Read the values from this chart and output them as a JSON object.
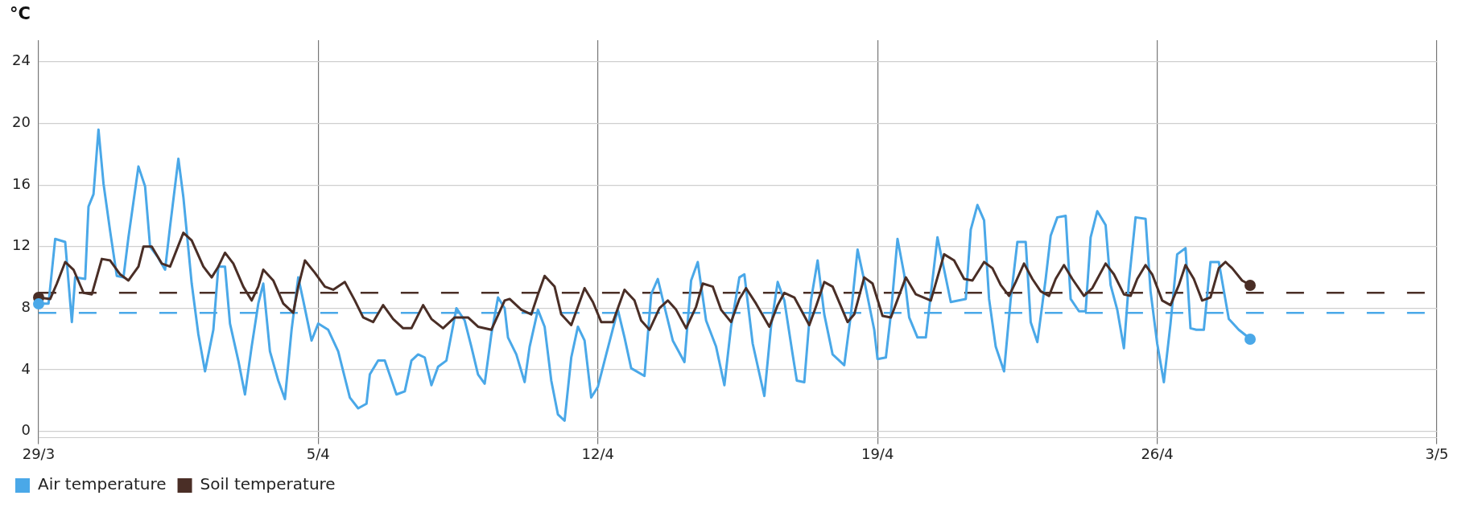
{
  "chart_data": {
    "type": "line",
    "ylabel": "°C",
    "xlim": [
      "--03-29",
      "--05-03"
    ],
    "xticks": [
      {
        "value": "--03-29",
        "label": "29/3"
      },
      {
        "value": "--04-05",
        "label": "5/4"
      },
      {
        "value": "--04-12",
        "label": "12/4"
      },
      {
        "value": "--04-19",
        "label": "19/4"
      },
      {
        "value": "--04-26",
        "label": "26/4"
      },
      {
        "value": "--05-03",
        "label": "3/5"
      }
    ],
    "ylim": [
      -0.4,
      25.4
    ],
    "yticks": [
      0,
      4,
      8,
      12,
      16,
      20,
      24
    ],
    "grid": true,
    "legend": "bottom left",
    "line_style": "solid",
    "ref_lines": [
      {
        "axis": "y",
        "value": 9.0,
        "color": "#4a2e26",
        "line_style": "dashed"
      },
      {
        "axis": "y",
        "value": 7.7,
        "color": "#4aa8e8",
        "line_style": "dashed"
      }
    ],
    "series": [
      {
        "name": "Air temperature",
        "color": "#4aa8e8",
        "x": [
          "--03-29T00:00",
          "--03-29T06:00",
          "--03-29T10:00",
          "--03-29T16:00",
          "--03-29T20:00",
          "--03-29T22:00",
          "--03-30T04:00",
          "--03-30T06:00",
          "--03-30T09:00",
          "--03-30T12:00",
          "--03-30T15:00",
          "--03-30T19:00",
          "--03-30T23:00",
          "--03-31T03:00",
          "--03-31T06:00",
          "--03-31T12:00",
          "--03-31T16:00",
          "--03-31T19:00",
          "--03-31T23:45",
          "--04-01T04:00",
          "--04-01T07:00",
          "--04-01T12:00",
          "--04-01T15:00",
          "--04-01T20:00",
          "--04-02T00:00",
          "--04-02T04:00",
          "--04-02T09:00",
          "--04-02T12:00",
          "--04-02T16:00",
          "--04-02T19:00",
          "--04-03T00:00",
          "--04-03T04:00",
          "--04-03T08:00",
          "--04-03T12:00",
          "--04-03T15:00",
          "--04-03T19:00",
          "--04-04T00:00",
          "--04-04T04:00",
          "--04-04T08:00",
          "--04-04T12:00",
          "--04-04T15:00",
          "--04-04T20:00",
          "--04-05T00:00",
          "--04-05T06:00",
          "--04-05T12:00",
          "--04-05T19:00",
          "--04-06T00:00",
          "--04-06T05:00",
          "--04-06T07:00",
          "--04-06T12:00",
          "--04-06T16:00",
          "--04-06T23:00",
          "--04-07T04:00",
          "--04-07T08:00",
          "--04-07T12:00",
          "--04-07T16:00",
          "--04-07T20:00",
          "--04-08T00:00",
          "--04-08T05:00",
          "--04-08T11:00",
          "--04-08T16:00",
          "--04-08T20:00",
          "--04-09T00:00",
          "--04-09T04:00",
          "--04-09T08:00",
          "--04-09T12:00",
          "--04-09T16:00",
          "--04-09T18:00",
          "--04-09T23:00",
          "--04-10T04:00",
          "--04-10T07:00",
          "--04-10T12:00",
          "--04-10T16:00",
          "--04-10T20:00",
          "--04-11T00:00",
          "--04-11T04:00",
          "--04-11T08:00",
          "--04-11T12:00",
          "--04-11T16:00",
          "--04-11T20:00",
          "--04-12T00:00",
          "--04-12T05:00",
          "--04-12T12:00",
          "--04-12T16:00",
          "--04-12T20:00",
          "--04-13T04:00",
          "--04-13T08:00",
          "--04-13T12:00",
          "--04-13T16:00",
          "--04-13T21:00",
          "--04-14T04:00",
          "--04-14T08:00",
          "--04-14T12:00",
          "--04-14T17:00",
          "--04-14T23:00",
          "--04-15T04:00",
          "--04-15T08:00",
          "--04-15T13:00",
          "--04-15T16:00",
          "--04-15T21:00",
          "--04-16T04:00",
          "--04-16T08:00",
          "--04-16T12:00",
          "--04-16T16:00",
          "--04-16T21:00",
          "--04-16T23:30",
          "--04-17T04:00",
          "--04-17T08:00",
          "--04-17T12:00",
          "--04-17T16:00",
          "--04-17T21:00",
          "--04-18T04:00",
          "--04-18T08:00",
          "--04-18T12:00",
          "--04-18T16:00",
          "--04-18T22:00",
          "--04-19T00:00",
          "--04-19T05:00",
          "--04-19T08:00",
          "--04-19T12:00",
          "--04-19T16:00",
          "--04-19T19:00",
          "--04-20T00:00",
          "--04-20T05:00",
          "--04-20T08:00",
          "--04-20T12:00",
          "--04-20T16:00",
          "--04-20T20:00",
          "--04-21T05:00",
          "--04-21T08:00",
          "--04-21T12:00",
          "--04-21T16:00",
          "--04-21T19:00",
          "--04-21T23:00",
          "--04-22T04:00",
          "--04-22T08:00",
          "--04-22T12:00",
          "--04-22T17:00",
          "--04-22T20:00",
          "--04-23T00:00",
          "--04-23T05:00",
          "--04-23T08:00",
          "--04-23T12:00",
          "--04-23T17:00",
          "--04-23T20:00",
          "--04-24T01:00",
          "--04-24T05:00",
          "--04-24T08:00",
          "--04-24T12:00",
          "--04-24T17:00",
          "--04-24T20:00",
          "--04-25T00:00",
          "--04-25T04:00",
          "--04-25T07:00",
          "--04-25T11:00",
          "--04-25T17:00",
          "--04-25T20:00",
          "--04-26T00:00",
          "--04-26T04:00",
          "--04-26T08:00",
          "--04-26T12:00",
          "--04-26T17:00",
          "--04-26T20:00",
          "--04-26T23:30",
          "--04-27T04:00",
          "--04-27T08:00",
          "--04-27T13:00",
          "--04-27T19:00",
          "--04-28T01:00",
          "--04-28T08:00"
        ],
        "values": [
          8.3,
          8.3,
          12.5,
          12.3,
          7.1,
          10.0,
          9.9,
          14.6,
          15.4,
          19.6,
          16.1,
          13.0,
          10.1,
          10.0,
          12.6,
          17.2,
          15.9,
          12.0,
          11.3,
          10.5,
          13.3,
          17.7,
          15.2,
          9.6,
          6.3,
          3.9,
          6.6,
          10.7,
          10.7,
          7.0,
          4.6,
          2.4,
          5.5,
          8.3,
          9.6,
          5.2,
          3.3,
          2.1,
          6.6,
          10.0,
          8.5,
          5.9,
          7.0,
          6.6,
          5.2,
          2.2,
          1.5,
          1.8,
          3.7,
          4.6,
          4.6,
          2.4,
          2.6,
          4.6,
          5.0,
          4.8,
          3.0,
          4.2,
          4.6,
          8.0,
          7.2,
          5.5,
          3.7,
          3.1,
          6.3,
          8.7,
          8.0,
          6.1,
          5.0,
          3.2,
          5.5,
          7.9,
          6.8,
          3.3,
          1.1,
          0.7,
          4.8,
          6.8,
          5.9,
          2.2,
          2.9,
          5.0,
          7.9,
          6.1,
          4.1,
          3.6,
          8.9,
          9.9,
          8.1,
          5.9,
          4.5,
          9.8,
          11.0,
          7.2,
          5.5,
          3.0,
          6.8,
          10.0,
          10.2,
          5.7,
          2.3,
          6.8,
          9.7,
          8.5,
          5.0,
          3.3,
          3.2,
          8.5,
          11.1,
          7.6,
          5.0,
          4.3,
          7.6,
          11.8,
          9.8,
          6.6,
          4.7,
          4.8,
          7.6,
          12.5,
          10.2,
          7.4,
          6.1,
          6.1,
          8.9,
          12.6,
          10.5,
          8.4,
          8.6,
          13.1,
          14.7,
          13.7,
          8.6,
          5.5,
          3.9,
          8.6,
          12.3,
          12.3,
          7.1,
          5.8,
          9.9,
          12.7,
          13.9,
          14.0,
          8.6,
          7.8,
          7.8,
          12.6,
          14.3,
          13.4,
          9.5,
          7.9,
          5.4,
          9.7,
          13.9,
          13.8,
          9.1,
          5.7,
          3.2,
          7.0,
          11.5,
          11.9,
          6.7,
          6.6,
          6.6,
          11.0,
          11.0,
          7.3,
          6.6,
          6.0
        ]
      },
      {
        "name": "Soil temperature",
        "color": "#4a2e26",
        "x": [
          "--03-29T00:00",
          "--03-29T07:00",
          "--03-29T11:00",
          "--03-29T16:00",
          "--03-29T21:00",
          "--03-30T03:00",
          "--03-30T08:00",
          "--03-30T14:00",
          "--03-30T19:00",
          "--03-31T01:00",
          "--03-31T06:00",
          "--03-31T12:00",
          "--03-31T15:00",
          "--03-31T20:00",
          "--04-01T02:00",
          "--04-01T07:00",
          "--04-01T11:00",
          "--04-01T15:00",
          "--04-01T20:00",
          "--04-02T03:00",
          "--04-02T08:00",
          "--04-02T12:00",
          "--04-02T16:00",
          "--04-02T21:00",
          "--04-03T03:00",
          "--04-03T08:00",
          "--04-03T12:00",
          "--04-03T15:00",
          "--04-03T21:00",
          "--04-04T03:00",
          "--04-04T09:00",
          "--04-04T12:00",
          "--04-04T16:00",
          "--04-04T22:00",
          "--04-05T04:00",
          "--04-05T09:00",
          "--04-05T16:00",
          "--04-05T22:00",
          "--04-06T03:00",
          "--04-06T09:00",
          "--04-06T15:00",
          "--04-06T21:00",
          "--04-07T03:00",
          "--04-07T08:00",
          "--04-07T15:00",
          "--04-07T20:00",
          "--04-08T03:00",
          "--04-08T10:00",
          "--04-08T18:00",
          "--04-09T00:00",
          "--04-09T08:00",
          "--04-09T16:00",
          "--04-09T19:00",
          "--04-10T02:00",
          "--04-10T08:00",
          "--04-10T12:00",
          "--04-10T16:00",
          "--04-10T22:00",
          "--04-11T02:00",
          "--04-11T08:00",
          "--04-11T12:00",
          "--04-11T16:00",
          "--04-11T21:00",
          "--04-12T02:00",
          "--04-12T09:00",
          "--04-12T16:00",
          "--04-12T22:00",
          "--04-13T02:00",
          "--04-13T07:00",
          "--04-13T13:00",
          "--04-13T18:00",
          "--04-13T23:00",
          "--04-14T05:00",
          "--04-14T11:00",
          "--04-14T15:00",
          "--04-14T21:00",
          "--04-15T02:00",
          "--04-15T08:00",
          "--04-15T13:00",
          "--04-15T17:00",
          "--04-15T23:00",
          "--04-16T07:00",
          "--04-16T12:00",
          "--04-16T16:00",
          "--04-16T22:00",
          "--04-17T07:00",
          "--04-17T11:00",
          "--04-17T16:00",
          "--04-17T21:00",
          "--04-18T06:00",
          "--04-18T10:00",
          "--04-18T16:00",
          "--04-18T21:00",
          "--04-19T03:00",
          "--04-19T08:00",
          "--04-19T17:00",
          "--04-19T23:00",
          "--04-20T08:00",
          "--04-20T16:00",
          "--04-20T22:00",
          "--04-21T04:00",
          "--04-21T09:00",
          "--04-21T16:00",
          "--04-21T21:00",
          "--04-22T02:00",
          "--04-22T07:00",
          "--04-22T11:00",
          "--04-22T16:00",
          "--04-22T21:00",
          "--04-23T02:00",
          "--04-23T07:00",
          "--04-23T11:00",
          "--04-23T16:00",
          "--04-23T21:00",
          "--04-24T04:00",
          "--04-24T09:00",
          "--04-24T17:00",
          "--04-24T22:00",
          "--04-25T04:00",
          "--04-25T08:00",
          "--04-25T12:00",
          "--04-25T17:00",
          "--04-25T21:00",
          "--04-26T03:00",
          "--04-26T08:00",
          "--04-26T13:00",
          "--04-26T17:00",
          "--04-26T22:00",
          "--04-27T03:00",
          "--04-27T08:00",
          "--04-27T13:00",
          "--04-27T17:00",
          "--04-27T21:00",
          "--04-28T03:00",
          "--04-28T08:00"
        ],
        "values": [
          8.7,
          8.6,
          9.6,
          11.0,
          10.5,
          9.0,
          8.9,
          11.2,
          11.1,
          10.2,
          9.8,
          10.7,
          12.0,
          12.0,
          10.9,
          10.7,
          11.8,
          12.9,
          12.4,
          10.7,
          10.0,
          10.7,
          11.6,
          10.9,
          9.4,
          8.5,
          9.4,
          10.5,
          9.8,
          8.3,
          7.7,
          9.4,
          11.1,
          10.3,
          9.4,
          9.2,
          9.7,
          8.5,
          7.4,
          7.1,
          8.2,
          7.3,
          6.7,
          6.7,
          8.2,
          7.3,
          6.7,
          7.4,
          7.4,
          6.8,
          6.6,
          8.5,
          8.6,
          7.9,
          7.6,
          8.9,
          10.1,
          9.4,
          7.6,
          6.9,
          8.1,
          9.3,
          8.4,
          7.1,
          7.1,
          9.2,
          8.5,
          7.2,
          6.6,
          8.0,
          8.5,
          7.9,
          6.7,
          8.1,
          9.6,
          9.4,
          7.9,
          7.1,
          8.6,
          9.3,
          8.3,
          6.8,
          8.2,
          9.0,
          8.7,
          6.9,
          8.1,
          9.7,
          9.4,
          7.1,
          7.6,
          10.0,
          9.6,
          7.5,
          7.4,
          10.0,
          8.9,
          8.5,
          11.5,
          11.1,
          9.9,
          9.8,
          11.0,
          10.6,
          9.5,
          8.8,
          9.7,
          10.9,
          9.9,
          9.1,
          8.8,
          9.9,
          10.8,
          9.9,
          8.8,
          9.3,
          10.9,
          10.2,
          8.9,
          8.8,
          9.9,
          10.8,
          10.2,
          8.5,
          8.2,
          9.5,
          10.8,
          9.9,
          8.5,
          8.7,
          10.6,
          11.0,
          10.6,
          9.8,
          9.5
        ]
      }
    ]
  }
}
